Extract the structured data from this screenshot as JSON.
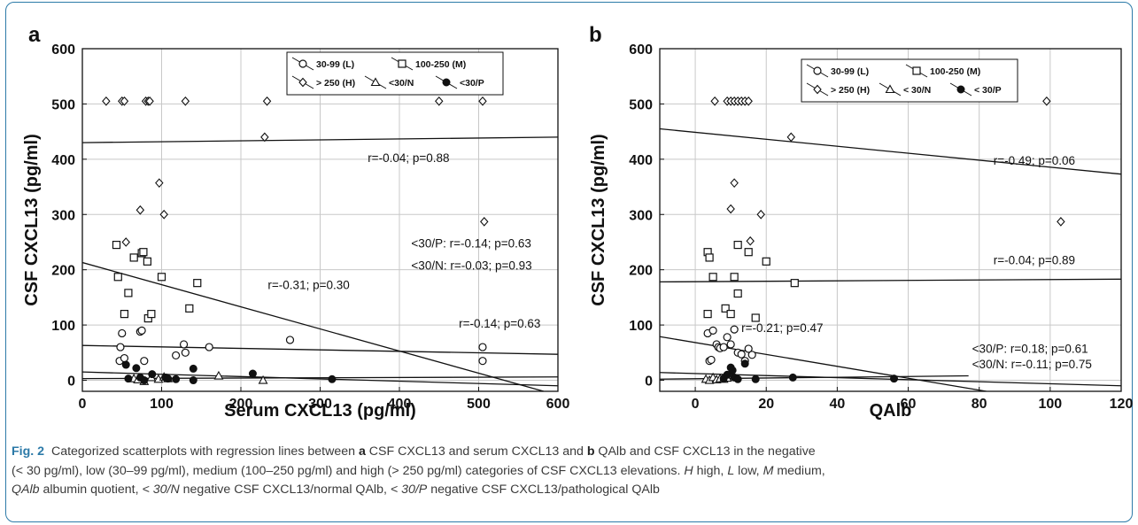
{
  "chart_data": [
    {
      "panel_label": "a",
      "type": "scatter",
      "xlabel": "Serum CXCL13 (pg/ml)",
      "ylabel": "CSF CXCL13 (pg/ml)",
      "xlim": [
        0,
        600
      ],
      "ylim": [
        -20,
        600
      ],
      "xticks": [
        "0",
        "100",
        "200",
        "300",
        "400",
        "500",
        "600"
      ],
      "yticks": [
        "0",
        "100",
        "200",
        "300",
        "400",
        "500",
        "600"
      ],
      "grid": true,
      "legend_position": "top-center",
      "series": [
        {
          "name": "30-99 (L)",
          "marker": "circle",
          "points": [
            [
              47,
              35
            ],
            [
              48,
              60
            ],
            [
              50,
              85
            ],
            [
              53,
              40
            ],
            [
              73,
              88
            ],
            [
              75,
              90
            ],
            [
              78,
              35
            ],
            [
              118,
              45
            ],
            [
              128,
              65
            ],
            [
              130,
              50
            ],
            [
              160,
              60
            ],
            [
              262,
              73
            ],
            [
              505,
              60
            ],
            [
              505,
              35
            ]
          ]
        },
        {
          "name": "100-250 (M)",
          "marker": "square",
          "points": [
            [
              43,
              245
            ],
            [
              45,
              187
            ],
            [
              53,
              120
            ],
            [
              58,
              158
            ],
            [
              65,
              222
            ],
            [
              75,
              230
            ],
            [
              77,
              232
            ],
            [
              82,
              215
            ],
            [
              83,
              112
            ],
            [
              87,
              120
            ],
            [
              100,
              187
            ],
            [
              135,
              130
            ],
            [
              145,
              176
            ]
          ]
        },
        {
          "name": "> 250 (H)",
          "marker": "diamond",
          "points": [
            [
              30,
              505
            ],
            [
              50,
              505
            ],
            [
              53,
              505
            ],
            [
              55,
              250
            ],
            [
              80,
              505
            ],
            [
              83,
              505
            ],
            [
              85,
              505
            ],
            [
              97,
              357
            ],
            [
              73,
              308
            ],
            [
              103,
              300
            ],
            [
              130,
              505
            ],
            [
              230,
              440
            ],
            [
              233,
              505
            ],
            [
              450,
              505
            ],
            [
              505,
              505
            ],
            [
              507,
              287
            ]
          ]
        },
        {
          "name": "<30/N",
          "marker": "triangle",
          "points": [
            [
              65,
              3
            ],
            [
              70,
              1
            ],
            [
              78,
              -2
            ],
            [
              87,
              5
            ],
            [
              96,
              2
            ],
            [
              103,
              6
            ],
            [
              108,
              3
            ],
            [
              172,
              8
            ],
            [
              228,
              0
            ]
          ]
        },
        {
          "name": "<30/P",
          "marker": "dot",
          "points": [
            [
              55,
              28
            ],
            [
              58,
              3
            ],
            [
              68,
              22
            ],
            [
              73,
              5
            ],
            [
              78,
              0
            ],
            [
              88,
              11
            ],
            [
              105,
              5
            ],
            [
              108,
              3
            ],
            [
              118,
              2
            ],
            [
              140,
              21
            ],
            [
              140,
              0
            ],
            [
              215,
              12
            ],
            [
              315,
              2
            ]
          ]
        }
      ],
      "regression_lines": [
        {
          "series": "> 250 (H)",
          "x": [
            0,
            600
          ],
          "y": [
            430,
            440
          ]
        },
        {
          "series": "100-250 (M)",
          "x": [
            0,
            582
          ],
          "y": [
            213,
            -20
          ]
        },
        {
          "series": "30-99 (L)",
          "x": [
            0,
            600
          ],
          "y": [
            63,
            47
          ]
        },
        {
          "series": "<30/P",
          "x": [
            0,
            600
          ],
          "y": [
            15,
            -10
          ]
        },
        {
          "series": "<30/N",
          "x": [
            0,
            600
          ],
          "y": [
            3,
            6
          ]
        }
      ],
      "annotations": [
        {
          "text": "r=-0.04; p=0.88",
          "x": 360,
          "y": 395
        },
        {
          "text": "<30/P: r=-0.14; p=0.63",
          "x": 415,
          "y": 240
        },
        {
          "text": "<30/N: r=-0.03; p=0.93",
          "x": 415,
          "y": 200
        },
        {
          "text": "r=-0.31; p=0.30",
          "x": 234,
          "y": 165
        },
        {
          "text": "r=-0.14; p=0.63",
          "x": 475,
          "y": 95
        }
      ]
    },
    {
      "panel_label": "b",
      "type": "scatter",
      "xlabel": "QAlb",
      "ylabel": "CSF CXCL13 (pg/ml)",
      "xlim": [
        -10,
        120
      ],
      "ylim": [
        -20,
        600
      ],
      "xticks": [
        "0",
        "20",
        "40",
        "60",
        "80",
        "100",
        "120"
      ],
      "yticks": [
        "0",
        "100",
        "200",
        "300",
        "400",
        "500",
        "600"
      ],
      "grid": true,
      "legend_position": "top-center",
      "series": [
        {
          "name": "30-99 (L)",
          "marker": "circle",
          "points": [
            [
              3.5,
              85
            ],
            [
              4,
              35
            ],
            [
              4.5,
              37
            ],
            [
              5,
              90
            ],
            [
              6,
              65
            ],
            [
              6.5,
              60
            ],
            [
              7,
              58
            ],
            [
              8,
              60
            ],
            [
              9,
              78
            ],
            [
              10,
              65
            ],
            [
              11,
              92
            ],
            [
              12,
              50
            ],
            [
              13,
              47
            ],
            [
              14,
              35
            ],
            [
              15,
              57
            ],
            [
              16,
              46
            ]
          ]
        },
        {
          "name": "100-250 (M)",
          "marker": "square",
          "points": [
            [
              3.5,
              232
            ],
            [
              4,
              222
            ],
            [
              3.5,
              120
            ],
            [
              5,
              187
            ],
            [
              8.5,
              130
            ],
            [
              10,
              120
            ],
            [
              11,
              187
            ],
            [
              12,
              245
            ],
            [
              12,
              157
            ],
            [
              15,
              232
            ],
            [
              17,
              113
            ],
            [
              20,
              215
            ],
            [
              28,
              176
            ]
          ]
        },
        {
          "name": "> 250 (H)",
          "marker": "diamond",
          "points": [
            [
              5.5,
              505
            ],
            [
              9,
              505
            ],
            [
              10,
              505
            ],
            [
              11,
              505
            ],
            [
              12,
              505
            ],
            [
              13,
              505
            ],
            [
              14,
              505
            ],
            [
              15,
              505
            ],
            [
              10,
              310
            ],
            [
              11,
              357
            ],
            [
              15.5,
              252
            ],
            [
              18.5,
              300
            ],
            [
              27,
              440
            ],
            [
              99,
              505
            ],
            [
              103,
              287
            ]
          ]
        },
        {
          "name": "< 30/N",
          "marker": "triangle",
          "points": [
            [
              3,
              2
            ],
            [
              4,
              0
            ],
            [
              5,
              5
            ],
            [
              6,
              1
            ],
            [
              7,
              3
            ],
            [
              8,
              2
            ],
            [
              9,
              4
            ]
          ]
        },
        {
          "name": "< 30/P",
          "marker": "dot",
          "points": [
            [
              8,
              3
            ],
            [
              9,
              10
            ],
            [
              10,
              23
            ],
            [
              10.5,
              18
            ],
            [
              11,
              5
            ],
            [
              12,
              2
            ],
            [
              14,
              30
            ],
            [
              17,
              2
            ],
            [
              27.5,
              5
            ],
            [
              56,
              3
            ]
          ]
        }
      ],
      "regression_lines": [
        {
          "series": "> 250 (H)",
          "x": [
            -10,
            120
          ],
          "y": [
            455,
            373
          ]
        },
        {
          "series": "100-250 (M)",
          "x": [
            -10,
            120
          ],
          "y": [
            178,
            183
          ]
        },
        {
          "series": "30-99 (L)",
          "x": [
            -10,
            82
          ],
          "y": [
            79,
            -20
          ]
        },
        {
          "series": "< 30/P",
          "x": [
            -10,
            120
          ],
          "y": [
            14,
            -10
          ]
        },
        {
          "series": "< 30/N",
          "x": [
            -10,
            77
          ],
          "y": [
            2,
            8
          ]
        }
      ],
      "annotations": [
        {
          "text": "r=-0.49; p=0.06",
          "x": 84,
          "y": 390
        },
        {
          "text": "r=-0.04; p=0.89",
          "x": 84,
          "y": 210
        },
        {
          "text": "r=-0.21; p=0.47",
          "x": 13,
          "y": 87
        },
        {
          "text": "<30/P: r=0.18; p=0.61",
          "x": 78,
          "y": 50
        },
        {
          "text": "<30/N: r=-0.11; p=0.75",
          "x": 78,
          "y": 22
        }
      ]
    }
  ],
  "caption": {
    "fig_label": "Fig. 2",
    "seg1": "Categorized scatterplots with regression lines between ",
    "panel_a": "a",
    "seg2": " CSF CXCL13 and serum CXCL13 and ",
    "panel_b": "b",
    "seg3": " QAlb and CSF CXCL13 in the negative",
    "line2": "(< 30 pg/ml), low (30–99 pg/ml), medium (100–250 pg/ml) and high (> 250 pg/ml) categories of CSF CXCL13 elevations. ",
    "abbr_h": "H",
    "def_h": " high, ",
    "abbr_l": "L",
    "def_l": " low, ",
    "abbr_m": "M",
    "def_m": " medium,",
    "abbr_q": "QAlb",
    "def_q": " albumin quotient, ",
    "abbr_n": "< 30/N",
    "def_n": " negative CSF CXCL13/normal QAlb, ",
    "abbr_p": "< 30/P",
    "def_p": " negative CSF CXCL13/pathological QAlb"
  },
  "colors": {
    "frame": "#2c7aa8",
    "figlabel": "#2c7aa8",
    "ink": "#111111",
    "grid": "#c8c8c8"
  }
}
